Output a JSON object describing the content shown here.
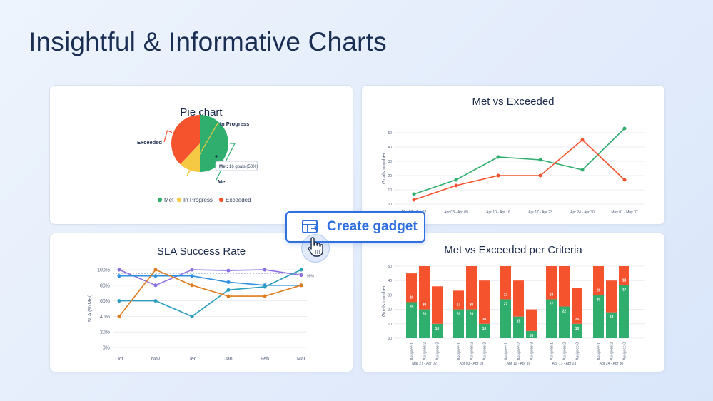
{
  "page": {
    "title": "Insightful & Informative Charts"
  },
  "button": {
    "label": "Create gadget"
  },
  "colors": {
    "met": "#2fae6e",
    "in_progress": "#f6c945",
    "exceeded": "#f4532e",
    "accent": "#2f6fe0"
  },
  "chart_data": [
    {
      "type": "pie",
      "title": "Pie chart",
      "slices": [
        {
          "name": "Met",
          "value": 50,
          "color": "#2fae6e"
        },
        {
          "name": "In Progress",
          "value": 12,
          "color": "#f6c945"
        },
        {
          "name": "Exceeded",
          "value": 38,
          "color": "#f4532e"
        }
      ],
      "legend": [
        "Met",
        "In Progress",
        "Exceeded"
      ],
      "legend_position": "bottom",
      "tooltip": {
        "bold": "Met:",
        "text": " 16 goals (50%)"
      }
    },
    {
      "type": "line",
      "title": "Met vs Exceeded",
      "ylabel": "Goals number",
      "categories": [
        "Mar 27 - Apr 02",
        "Apr 03 - Apr 09",
        "Apr 10 - Apr 16",
        "Apr 17 - Apr 23",
        "Apr 24 - Apr 30",
        "May 01 - May 07"
      ],
      "yticks": [
        "50",
        "40",
        "30",
        "20",
        "10",
        "00"
      ],
      "ylim": [
        0,
        50
      ],
      "series": [
        {
          "values": [
            7,
            17,
            33,
            31,
            24,
            53
          ],
          "color": "#2fae6e"
        },
        {
          "values": [
            3,
            13,
            20,
            20,
            45,
            17
          ],
          "color": "#f4532e"
        }
      ]
    },
    {
      "type": "line",
      "title": "SLA Success Rate",
      "ylabel": "SLA (% Met)",
      "categories": [
        "Oct",
        "Nov",
        "Dec",
        "Jan",
        "Feb",
        "Mar"
      ],
      "yticks": [
        "100%",
        "80%",
        "60%",
        "40%",
        "20%",
        "0%"
      ],
      "ylim": [
        0,
        100
      ],
      "target": {
        "value": 95,
        "label": "95%"
      },
      "series": [
        {
          "values": [
            100,
            80,
            100,
            99,
            100,
            93
          ],
          "color": "#8b6fe0"
        },
        {
          "values": [
            92,
            92,
            92,
            84,
            80,
            80
          ],
          "color": "#2f8fe0"
        },
        {
          "values": [
            60,
            60,
            40,
            74,
            78,
            100
          ],
          "color": "#2a9cbd"
        },
        {
          "values": [
            40,
            100,
            80,
            66,
            66,
            80
          ],
          "color": "#e07b1c"
        }
      ]
    },
    {
      "type": "bar",
      "title": "Met vs Exceeded per Criteria",
      "ylabel": "Goals number",
      "stacked": true,
      "groups": [
        "Mar 27 - Apr 02",
        "Apr 03 - Apr 09",
        "Apr 10 - Apr 16",
        "Apr 17 - Apr 23",
        "Apr 24 - Apr 30"
      ],
      "categories": [
        [
          "Assignee 1",
          "Assignee 2",
          "Assignee 3"
        ],
        [
          "Assignee 1",
          "Assignee 2",
          "Assignee 3"
        ],
        [
          "Assignee 1",
          "Assignee 2",
          "Assignee 3"
        ],
        [
          "Assignee 1",
          "Assignee 2",
          "Assignee 3"
        ],
        [
          "Assignee 1",
          "Assignee 2",
          "Assignee 3"
        ]
      ],
      "yticks": [
        "50",
        "40",
        "30",
        "20",
        "10",
        "00"
      ],
      "ylim": [
        0,
        50
      ],
      "met": [
        [
          25,
          20,
          10
        ],
        [
          20,
          20,
          10
        ],
        [
          27,
          15,
          5
        ],
        [
          27,
          22,
          10
        ],
        [
          30,
          18,
          37
        ]
      ],
      "exceeded": [
        [
          20,
          30,
          26
        ],
        [
          13,
          30,
          30
        ],
        [
          23,
          25,
          15
        ],
        [
          23,
          28,
          25
        ],
        [
          20,
          22,
          13
        ]
      ],
      "met_labels": [
        [
          "25",
          "20",
          "10"
        ],
        [
          "20",
          "20",
          "10"
        ],
        [
          "27",
          "15",
          "05"
        ],
        [
          "27",
          "22",
          "10"
        ],
        [
          "30",
          "18",
          "37"
        ]
      ],
      "exceeded_labels": [
        [
          "20",
          "30",
          ""
        ],
        [
          "13",
          "30",
          "30"
        ],
        [
          "23",
          "",
          ""
        ],
        [
          "23",
          "",
          "25"
        ],
        [
          "20",
          "",
          "13"
        ]
      ],
      "colors": {
        "met": "#2fae6e",
        "exceeded": "#f4532e"
      }
    }
  ]
}
